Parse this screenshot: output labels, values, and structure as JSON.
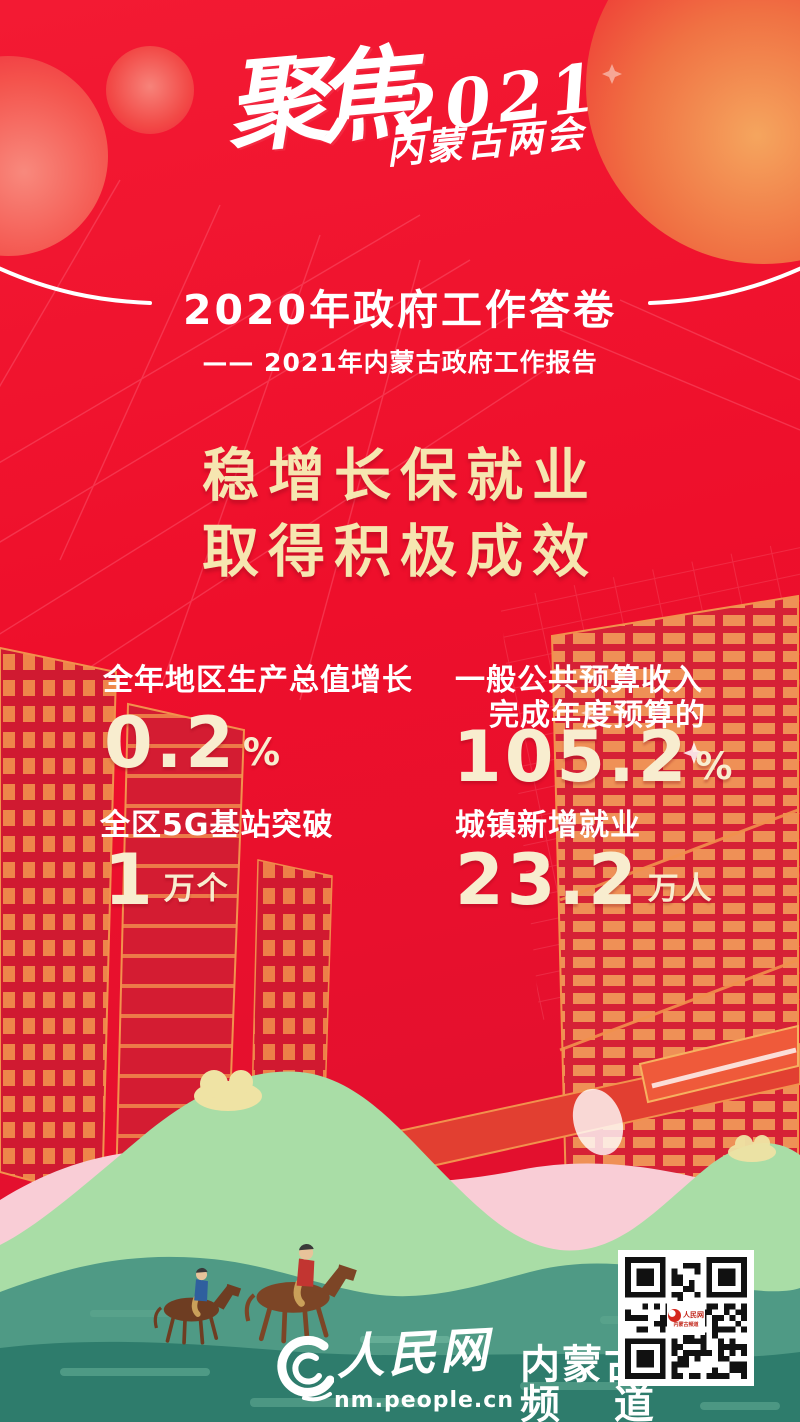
{
  "top_logo": {
    "focus": "聚焦",
    "year": "2021",
    "event": "内蒙古两会"
  },
  "header": {
    "title": "2020年政府工作答卷",
    "subtitle": "—— 2021年内蒙古政府工作报告"
  },
  "headline": {
    "line1": "稳增长保就业",
    "line2": "取得积极成效"
  },
  "stats": {
    "gdp": {
      "label": "全年地区生产总值增长",
      "value": "0.2",
      "unit": "%"
    },
    "budget": {
      "label_line1": "一般公共预算收入",
      "label_line2": "完成年度预算的",
      "value": "105.2",
      "unit": "%"
    },
    "g5": {
      "label": "全区5G基站突破",
      "value": "1",
      "unit": "万个"
    },
    "jobs": {
      "label": "城镇新增就业",
      "value": "23.2",
      "unit": "万人"
    }
  },
  "footer": {
    "site_name": "人民网",
    "site_url": "nm.people.cn",
    "channel_line1": "内蒙古",
    "channel_line2": "频 道",
    "qr_logo_line1": "人民网",
    "qr_logo_line2": "内蒙古频道"
  },
  "colors": {
    "background_red": "#ee1230",
    "accent_gold": "#f6e6b0",
    "value_cream": "#f8edcf",
    "building_orange": "#f2914d",
    "hill_green": "#a9dda6",
    "mid_teal": "#4f9a85",
    "ground_teal": "#2e7c6c",
    "ribbon_pink": "#f9cdd6"
  }
}
